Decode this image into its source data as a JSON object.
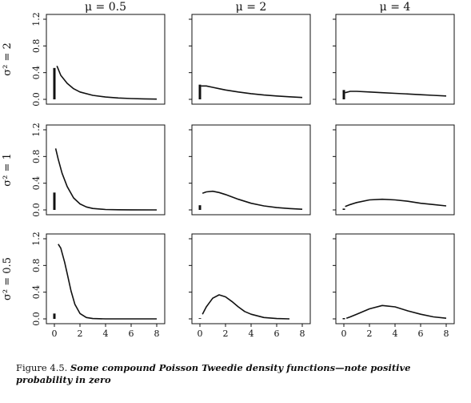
{
  "chart_data": {
    "type": "line",
    "layout": "3x3 grid of density panels",
    "column_labels": [
      "μ = 0.5",
      "μ = 2",
      "μ = 4"
    ],
    "row_labels": [
      "σ² = 2",
      "σ² = 1",
      "σ² = 0.5"
    ],
    "xlim": [
      0,
      8
    ],
    "ylim": [
      0,
      1.2
    ],
    "x_ticks": [
      "0",
      "2",
      "4",
      "6",
      "8"
    ],
    "y_ticks": [
      "0.0",
      "0.4",
      "0.8",
      "1.2"
    ],
    "panels": [
      {
        "mu": "0.5",
        "sigma2": "2",
        "zero_mass": 0.47,
        "x": [
          0.2,
          0.5,
          1,
          1.5,
          2,
          3,
          4,
          5,
          6,
          7,
          8
        ],
        "y": [
          0.5,
          0.36,
          0.24,
          0.16,
          0.11,
          0.06,
          0.035,
          0.02,
          0.012,
          0.007,
          0.004
        ]
      },
      {
        "mu": "2",
        "sigma2": "2",
        "zero_mass": 0.22,
        "x": [
          0.1,
          0.5,
          1,
          1.5,
          2,
          3,
          4,
          5,
          6,
          7,
          8
        ],
        "y": [
          0.2,
          0.2,
          0.18,
          0.16,
          0.14,
          0.11,
          0.085,
          0.065,
          0.05,
          0.038,
          0.028
        ]
      },
      {
        "mu": "4",
        "sigma2": "2",
        "zero_mass": 0.14,
        "x": [
          0.1,
          0.5,
          1,
          2,
          3,
          4,
          5,
          6,
          7,
          8
        ],
        "y": [
          0.1,
          0.12,
          0.12,
          0.11,
          0.1,
          0.09,
          0.08,
          0.07,
          0.06,
          0.05
        ]
      },
      {
        "mu": "0.5",
        "sigma2": "1",
        "zero_mass": 0.26,
        "x": [
          0.1,
          0.3,
          0.6,
          1,
          1.5,
          2,
          2.5,
          3,
          4,
          5,
          6,
          8
        ],
        "y": [
          0.92,
          0.76,
          0.55,
          0.35,
          0.18,
          0.09,
          0.045,
          0.022,
          0.006,
          0.002,
          0.001,
          0
        ]
      },
      {
        "mu": "2",
        "sigma2": "1",
        "zero_mass": 0.07,
        "x": [
          0.2,
          0.5,
          1,
          1.5,
          2,
          3,
          4,
          5,
          6,
          7,
          8
        ],
        "y": [
          0.25,
          0.27,
          0.28,
          0.26,
          0.23,
          0.16,
          0.1,
          0.06,
          0.035,
          0.02,
          0.01
        ]
      },
      {
        "mu": "4",
        "sigma2": "1",
        "zero_mass": 0.02,
        "x": [
          0.1,
          0.5,
          1,
          2,
          3,
          4,
          5,
          6,
          7,
          8
        ],
        "y": [
          0.05,
          0.08,
          0.11,
          0.15,
          0.16,
          0.15,
          0.13,
          0.1,
          0.08,
          0.06
        ]
      },
      {
        "mu": "0.5",
        "sigma2": "0.5",
        "zero_mass": 0.08,
        "x": [
          0.3,
          0.5,
          0.8,
          1,
          1.3,
          1.6,
          2,
          2.5,
          3,
          4,
          6,
          8
        ],
        "y": [
          1.12,
          1.06,
          0.85,
          0.68,
          0.42,
          0.22,
          0.08,
          0.02,
          0.005,
          0,
          0,
          0
        ]
      },
      {
        "mu": "2",
        "sigma2": "0.5",
        "zero_mass": 0.01,
        "x": [
          0.2,
          0.5,
          1,
          1.5,
          2,
          2.5,
          3,
          3.5,
          4,
          5,
          6,
          7
        ],
        "y": [
          0.07,
          0.18,
          0.31,
          0.36,
          0.33,
          0.26,
          0.18,
          0.11,
          0.07,
          0.02,
          0.005,
          0
        ]
      },
      {
        "mu": "4",
        "sigma2": "0.5",
        "zero_mass": 0.0,
        "x": [
          0.2,
          0.5,
          1,
          2,
          3,
          4,
          5,
          6,
          7,
          8
        ],
        "y": [
          0.01,
          0.03,
          0.07,
          0.15,
          0.2,
          0.18,
          0.12,
          0.07,
          0.03,
          0.01
        ]
      }
    ]
  },
  "caption": {
    "lead": "Figure 4.5.",
    "body": "Some compound Poisson Tweedie density functions—note positive probability in zero"
  }
}
